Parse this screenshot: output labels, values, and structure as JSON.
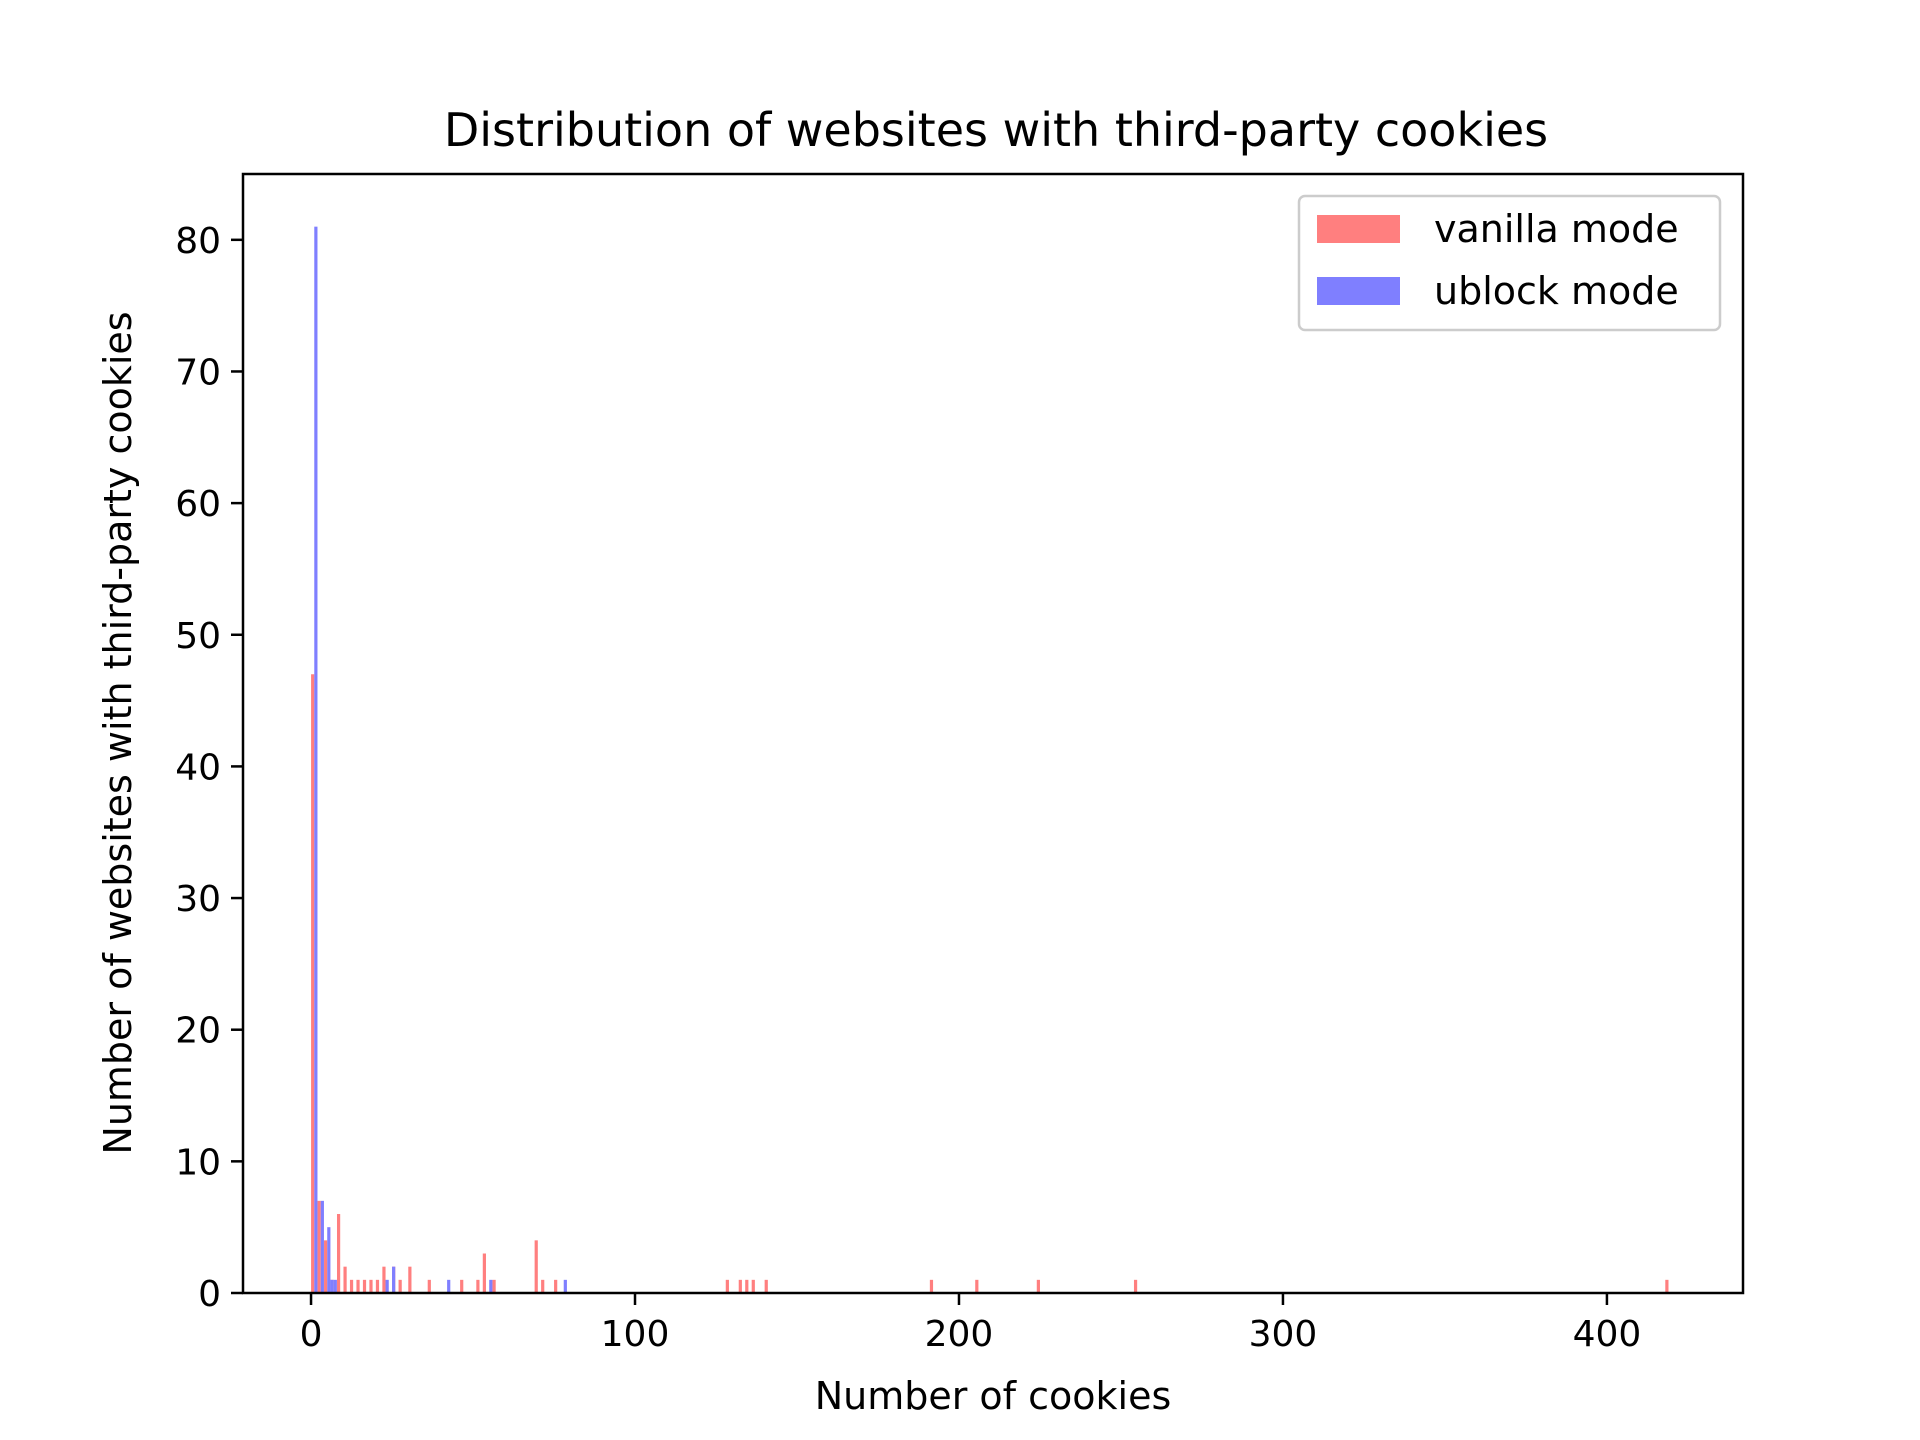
{
  "chart_data": {
    "type": "bar",
    "title": "Distribution of websites with third-party cookies",
    "xlabel": "Number of cookies",
    "ylabel": "Number of websites with third-party cookies",
    "xlim": [
      -21,
      442
    ],
    "ylim": [
      0,
      85
    ],
    "xticks": [
      0,
      100,
      200,
      300,
      400
    ],
    "yticks": [
      0,
      10,
      20,
      30,
      40,
      50,
      60,
      70,
      80
    ],
    "grid": false,
    "legend_position": "top-right",
    "series": [
      {
        "name": "vanilla mode",
        "color": "#ff7f7f",
        "points": [
          [
            1,
            47
          ],
          [
            3,
            7
          ],
          [
            5,
            4
          ],
          [
            7,
            1
          ],
          [
            9,
            6
          ],
          [
            11,
            2
          ],
          [
            13,
            1
          ],
          [
            15,
            1
          ],
          [
            17,
            1
          ],
          [
            19,
            1
          ],
          [
            21,
            1
          ],
          [
            23,
            2
          ],
          [
            26,
            2
          ],
          [
            28,
            1
          ],
          [
            31,
            2
          ],
          [
            37,
            1
          ],
          [
            47,
            1
          ],
          [
            52,
            1
          ],
          [
            54,
            3
          ],
          [
            57,
            1
          ],
          [
            70,
            4
          ],
          [
            72,
            1
          ],
          [
            76,
            1
          ],
          [
            129,
            1
          ],
          [
            133,
            1
          ],
          [
            135,
            1
          ],
          [
            137,
            1
          ],
          [
            141,
            1
          ],
          [
            192,
            1
          ],
          [
            206,
            1
          ],
          [
            225,
            1
          ],
          [
            255,
            1
          ],
          [
            419,
            1
          ]
        ]
      },
      {
        "name": "ublock mode",
        "color": "#7f7fff",
        "points": [
          [
            1,
            81
          ],
          [
            3,
            7
          ],
          [
            5,
            5
          ],
          [
            6,
            1
          ],
          [
            7,
            1
          ],
          [
            23,
            1
          ],
          [
            25,
            2
          ],
          [
            42,
            1
          ],
          [
            55,
            1
          ],
          [
            78,
            1
          ]
        ]
      }
    ]
  }
}
